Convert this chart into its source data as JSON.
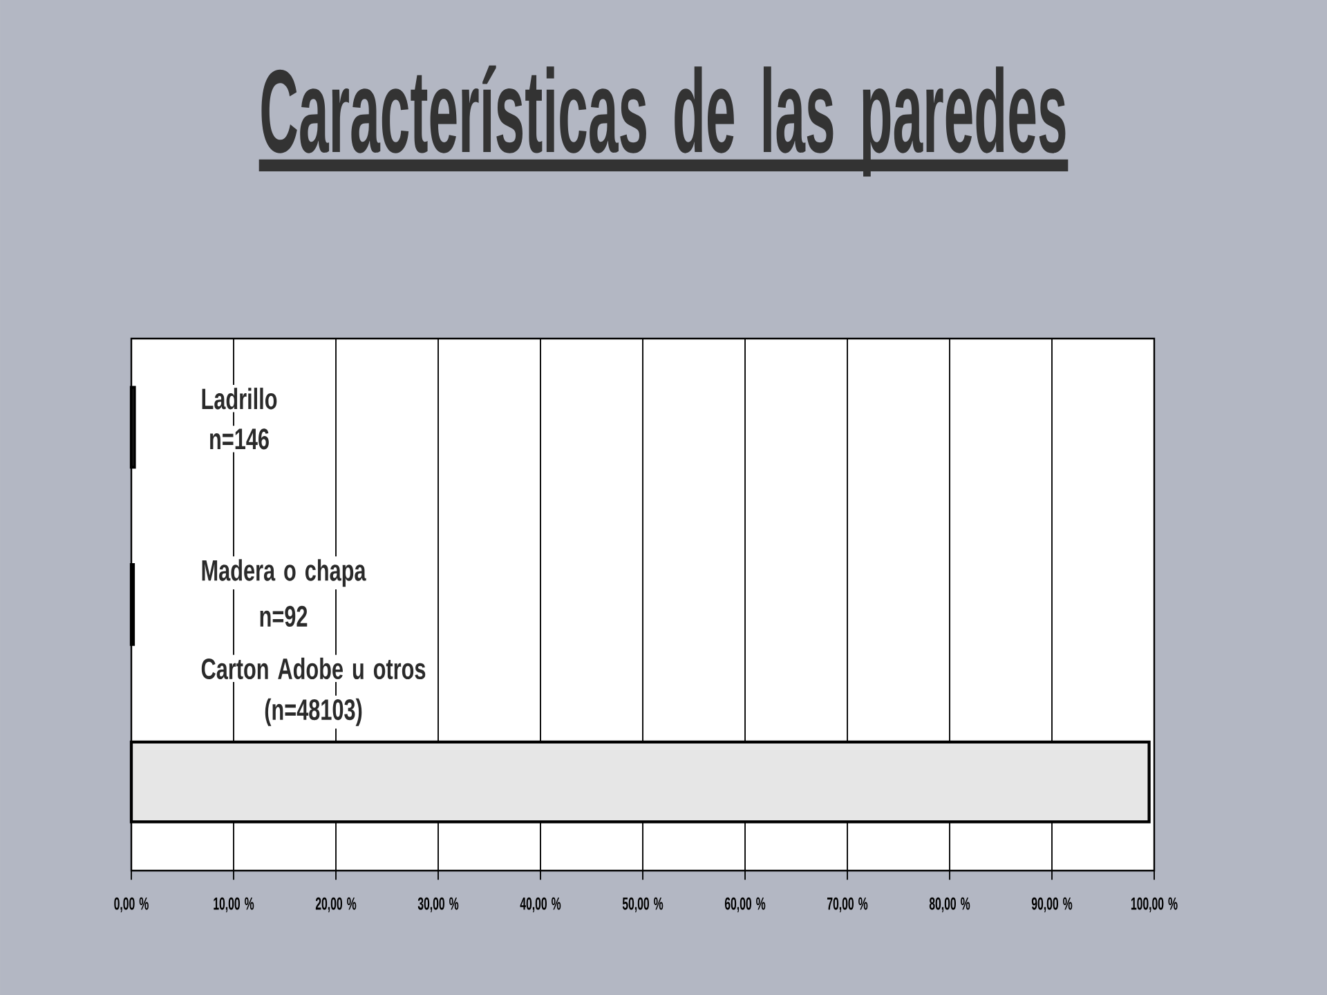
{
  "chart_data": {
    "type": "bar",
    "orientation": "horizontal",
    "title": "Características de las paredes",
    "categories": [
      "Ladrillo",
      "Madera o chapa",
      "Carton Adobe u otros"
    ],
    "values": [
      0.3,
      0.2,
      99.5
    ],
    "annotations": [
      "n=146",
      "n=92",
      "(n=48103)"
    ],
    "color": "#e6e6e6",
    "xlim": [
      0,
      100
    ],
    "xticks": [
      {
        "value": 0,
        "label": "0,00 %"
      },
      {
        "value": 10,
        "label": "10,00 %"
      },
      {
        "value": 20,
        "label": "20,00 %"
      },
      {
        "value": 30,
        "label": "30,00 %"
      },
      {
        "value": 40,
        "label": "40,00 %"
      },
      {
        "value": 50,
        "label": "50,00 %"
      },
      {
        "value": 60,
        "label": "60,00 %"
      },
      {
        "value": 70,
        "label": "70,00 %"
      },
      {
        "value": 80,
        "label": "80,00 %"
      },
      {
        "value": 90,
        "label": "90,00 %"
      },
      {
        "value": 100,
        "label": "100,00 %"
      }
    ],
    "grid": "x"
  }
}
